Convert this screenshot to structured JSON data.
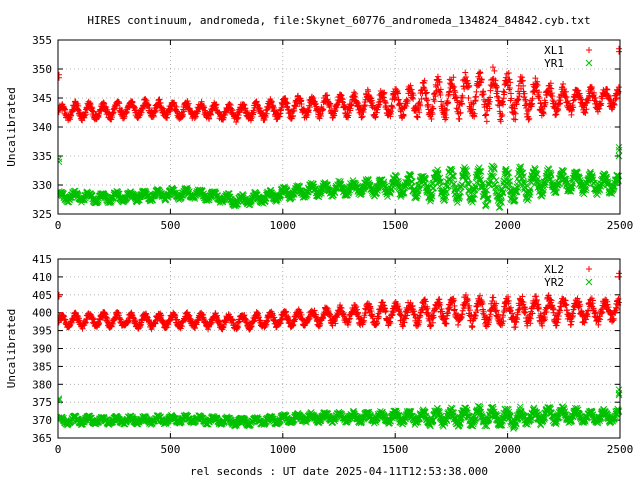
{
  "chart_data": [
    {
      "type": "scatter",
      "title": "HIRES continuum, andromeda, file:Skynet_60776_andromeda_134824_84842.cyb.txt",
      "ylabel": "Uncalibrated",
      "xlabel": "",
      "xlim": [
        0,
        2500
      ],
      "ylim": [
        325,
        355
      ],
      "xticks": [
        "0",
        "500",
        "1000",
        "1500",
        "2000",
        "2500"
      ],
      "yticks": [
        "325",
        "330",
        "335",
        "340",
        "345",
        "350",
        "355"
      ],
      "grid": true,
      "legend_position": "top-right",
      "series": [
        {
          "name": "XL1",
          "color": "#ff0000",
          "marker": "plus",
          "x": [
            0,
            100,
            200,
            300,
            400,
            500,
            600,
            700,
            800,
            900,
            1000,
            1100,
            1200,
            1300,
            1400,
            1500,
            1600,
            1700,
            1800,
            1900,
            2000,
            2100,
            2200,
            2300,
            2400,
            2500
          ],
          "y": [
            342.5,
            342.8,
            342.6,
            343.0,
            343.2,
            343.0,
            342.8,
            342.7,
            342.5,
            342.8,
            343.2,
            343.5,
            343.6,
            343.8,
            344.0,
            344.2,
            344.5,
            345.0,
            345.5,
            345.8,
            345.5,
            345.0,
            344.8,
            344.5,
            344.8,
            345.2
          ],
          "swing": [
            1.3,
            1.3,
            1.3,
            1.3,
            1.3,
            1.3,
            1.3,
            1.3,
            1.3,
            1.4,
            1.5,
            1.6,
            1.7,
            1.8,
            2.0,
            2.2,
            2.5,
            3.0,
            3.5,
            3.8,
            3.5,
            3.0,
            2.5,
            2.0,
            1.8,
            1.6
          ]
        },
        {
          "name": "YR1",
          "color": "#00c000",
          "marker": "cross",
          "x": [
            0,
            100,
            200,
            300,
            400,
            500,
            600,
            700,
            800,
            900,
            1000,
            1100,
            1200,
            1300,
            1400,
            1500,
            1600,
            1700,
            1800,
            1900,
            2000,
            2100,
            2200,
            2300,
            2400,
            2500
          ],
          "y": [
            328.0,
            328.0,
            327.8,
            328.0,
            328.2,
            328.4,
            328.5,
            328.0,
            327.3,
            327.8,
            328.5,
            329.0,
            329.3,
            329.5,
            329.6,
            329.8,
            329.8,
            330.0,
            330.0,
            330.0,
            329.5,
            330.2,
            330.5,
            330.5,
            330.2,
            330.0
          ],
          "swing": [
            0.8,
            0.8,
            0.8,
            0.8,
            0.8,
            0.8,
            0.8,
            0.8,
            0.9,
            0.9,
            1.0,
            1.0,
            1.1,
            1.1,
            1.3,
            1.6,
            2.0,
            2.3,
            2.5,
            2.8,
            3.0,
            2.3,
            1.8,
            1.6,
            1.5,
            1.4
          ]
        }
      ],
      "edge_points": {
        "left": [
          {
            "series": 0,
            "y": [
              349.0,
              348.5
            ]
          },
          {
            "series": 1,
            "y": [
              334.5,
              334.0
            ]
          }
        ],
        "right": [
          {
            "series": 0,
            "y": [
              353.5,
              353.0
            ]
          },
          {
            "series": 1,
            "y": [
              336.5,
              336.0,
              335.0
            ]
          }
        ]
      }
    },
    {
      "type": "scatter",
      "title": "",
      "ylabel": "Uncalibrated",
      "xlabel": "rel seconds : UT date 2025-04-11T12:53:38.000",
      "xlim": [
        0,
        2500
      ],
      "ylim": [
        365,
        415
      ],
      "xticks": [
        "0",
        "500",
        "1000",
        "1500",
        "2000",
        "2500"
      ],
      "yticks": [
        "365",
        "370",
        "375",
        "380",
        "385",
        "390",
        "395",
        "400",
        "405",
        "410",
        "415"
      ],
      "grid": true,
      "legend_position": "top-right",
      "series": [
        {
          "name": "XL2",
          "color": "#ff0000",
          "marker": "plus",
          "x": [
            0,
            100,
            200,
            300,
            400,
            500,
            600,
            700,
            800,
            900,
            1000,
            1100,
            1200,
            1300,
            1400,
            1500,
            1600,
            1700,
            1800,
            1900,
            2000,
            2100,
            2200,
            2300,
            2400,
            2500
          ],
          "y": [
            397.5,
            397.8,
            398.0,
            397.8,
            397.6,
            397.8,
            397.8,
            397.6,
            397.5,
            397.8,
            398.2,
            398.6,
            399.0,
            399.3,
            399.5,
            399.8,
            400.0,
            400.2,
            400.5,
            400.2,
            400.0,
            400.3,
            400.8,
            400.6,
            400.3,
            401.0
          ],
          "swing": [
            1.8,
            1.8,
            1.8,
            1.8,
            1.8,
            1.8,
            1.8,
            1.8,
            1.8,
            1.9,
            2.0,
            2.1,
            2.2,
            2.4,
            2.6,
            2.8,
            3.0,
            3.3,
            3.5,
            3.5,
            3.5,
            3.6,
            3.5,
            3.2,
            3.0,
            2.6
          ]
        },
        {
          "name": "YR2",
          "color": "#00c000",
          "marker": "cross",
          "x": [
            0,
            100,
            200,
            300,
            400,
            500,
            600,
            700,
            800,
            900,
            1000,
            1100,
            1200,
            1300,
            1400,
            1500,
            1600,
            1700,
            1800,
            1900,
            2000,
            2100,
            2200,
            2300,
            2400,
            2500
          ],
          "y": [
            369.8,
            370.0,
            370.0,
            370.0,
            370.0,
            370.2,
            370.2,
            370.0,
            369.5,
            369.8,
            370.3,
            370.6,
            370.8,
            370.8,
            370.8,
            370.8,
            370.8,
            370.8,
            371.0,
            371.0,
            370.5,
            371.0,
            371.5,
            371.2,
            371.0,
            371.2
          ],
          "swing": [
            1.0,
            1.0,
            1.0,
            1.0,
            1.0,
            1.0,
            1.0,
            1.0,
            1.0,
            1.0,
            1.1,
            1.2,
            1.2,
            1.3,
            1.4,
            1.6,
            1.8,
            2.0,
            2.2,
            2.4,
            2.4,
            2.2,
            2.0,
            1.8,
            1.6,
            1.5
          ]
        }
      ],
      "edge_points": {
        "left": [
          {
            "series": 0,
            "y": [
              405.0,
              404.5
            ]
          },
          {
            "series": 1,
            "y": [
              376.0,
              375.5
            ]
          }
        ],
        "right": [
          {
            "series": 0,
            "y": [
              411.0,
              410.0
            ]
          },
          {
            "series": 1,
            "y": [
              378.5,
              377.5,
              377.0
            ]
          }
        ]
      }
    }
  ]
}
